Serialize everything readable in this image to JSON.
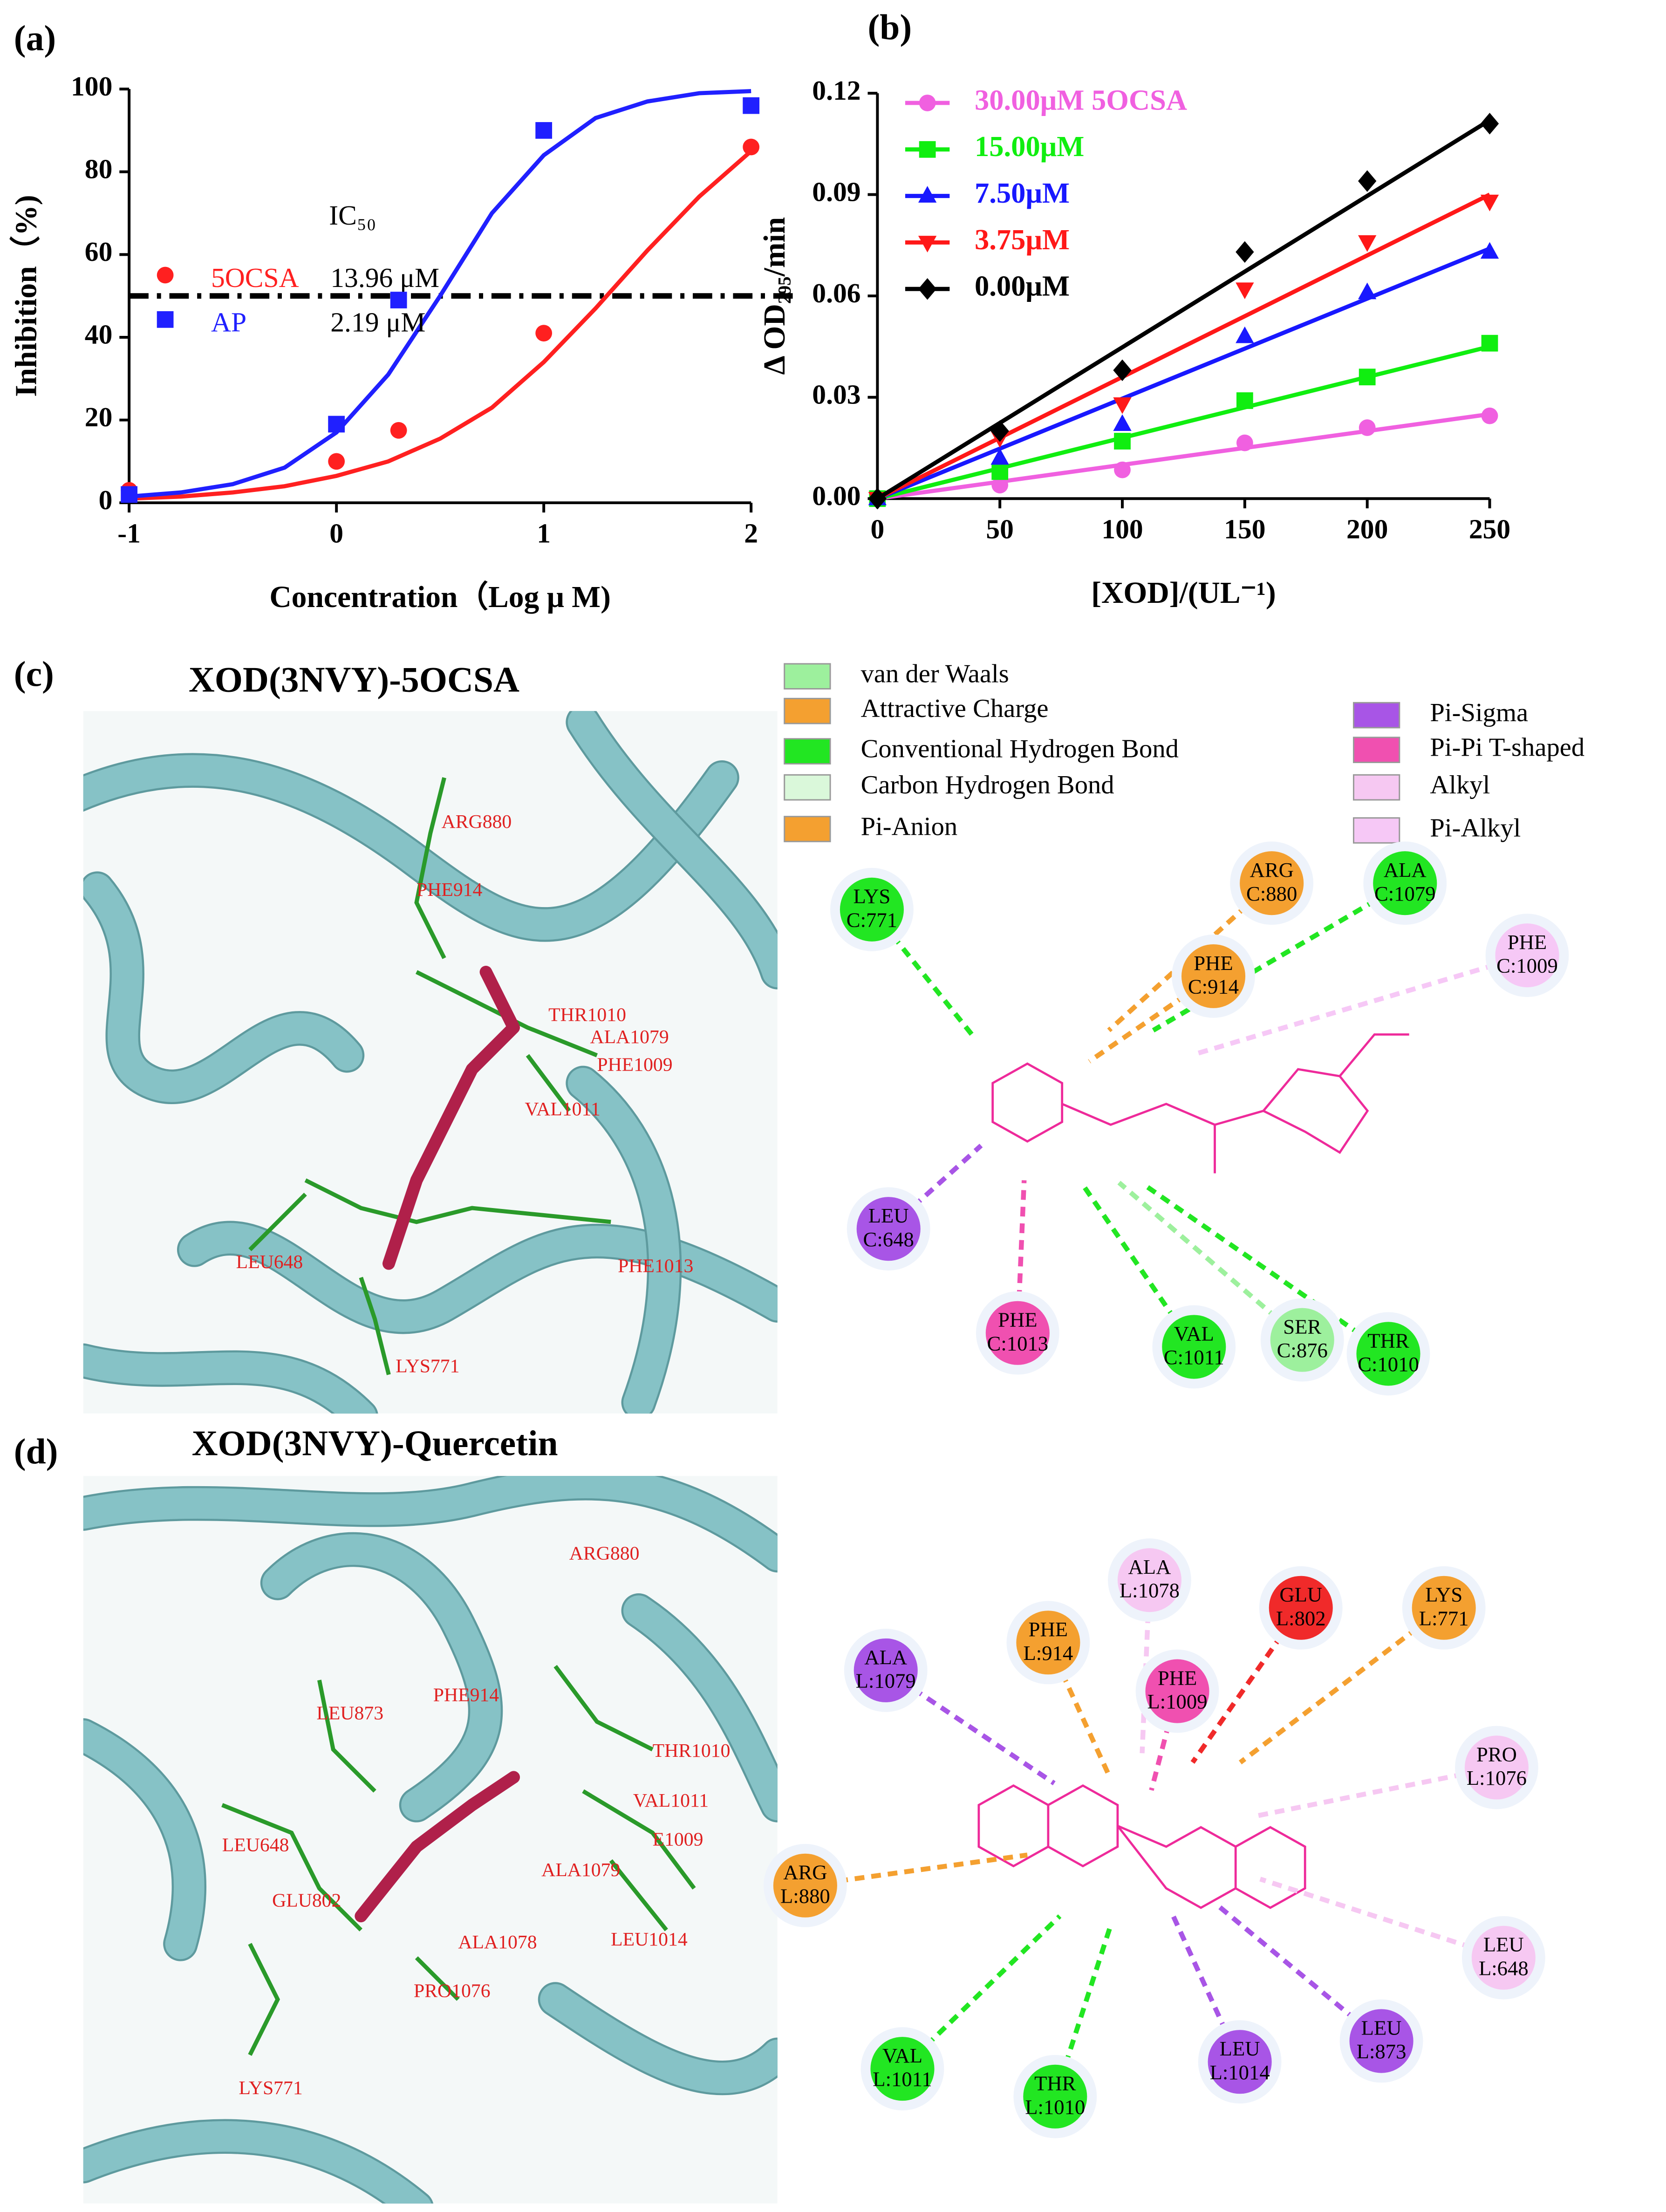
{
  "chart_data": [
    {
      "type": "scatter",
      "panel_label": "(a)",
      "x_label": "Concentration（Log μ M)",
      "y_label": "Inhibition（%)",
      "xlim": [
        -1,
        2
      ],
      "xticks": [
        -1,
        0,
        1,
        2
      ],
      "ylim": [
        0,
        100
      ],
      "yticks": [
        0,
        20,
        40,
        60,
        80,
        100
      ],
      "annotation": "IC₅₀",
      "reference_line": 50,
      "series": [
        {
          "name": "5OCSA",
          "ic50": "13.96 μM",
          "color": "#ff2020",
          "marker": "circle",
          "x": [
            -1,
            0,
            0.3,
            1,
            2
          ],
          "values": [
            3,
            10,
            17.5,
            41,
            86
          ],
          "fit": {
            "x": [
              -1,
              -0.75,
              -0.5,
              -0.25,
              0,
              0.25,
              0.5,
              0.75,
              1,
              1.25,
              1.5,
              1.75,
              2
            ],
            "values": [
              1,
              1.5,
              2.5,
              4,
              6.5,
              10,
              15.5,
              23,
              34,
              47,
              61,
              74,
              85
            ]
          }
        },
        {
          "name": "AP",
          "ic50": "2.19 μM",
          "color": "#2020ff",
          "marker": "square",
          "x": [
            -1,
            0,
            0.3,
            1,
            2
          ],
          "values": [
            2,
            19,
            49,
            90,
            96
          ],
          "fit": {
            "x": [
              -1,
              -0.75,
              -0.5,
              -0.25,
              0,
              0.25,
              0.5,
              0.75,
              1,
              1.25,
              1.5,
              1.75,
              2
            ],
            "values": [
              1.5,
              2.5,
              4.5,
              8.5,
              17,
              31,
              50,
              70,
              84,
              93,
              97,
              99,
              99.5
            ]
          }
        }
      ]
    },
    {
      "type": "scatter",
      "panel_label": "(b)",
      "x_label": "[XOD]/(UL⁻¹)",
      "y_label": "Δ OD₂₉₅/min",
      "xlim": [
        0,
        250
      ],
      "xticks": [
        0,
        50,
        100,
        150,
        200,
        250
      ],
      "ylim": [
        0,
        0.12
      ],
      "yticks": [
        {
          "value": 0,
          "label": "0.00"
        },
        {
          "value": 0.03,
          "label": "0.03"
        },
        {
          "value": 0.06,
          "label": "0.06"
        },
        {
          "value": 0.09,
          "label": "0.09"
        },
        {
          "value": 0.12,
          "label": "0.12"
        }
      ],
      "legend": "top-left",
      "series": [
        {
          "name": "30.00μM 5OCSA",
          "color": "#f060e0",
          "marker": "circle",
          "x": [
            0,
            50,
            100,
            150,
            200,
            250
          ],
          "values": [
            0,
            0.004,
            0.0085,
            0.0165,
            0.021,
            0.0245
          ],
          "fit": {
            "x": [
              0,
              250
            ],
            "values": [
              0,
              0.025
            ]
          }
        },
        {
          "name": "15.00μM",
          "color": "#10ee10",
          "marker": "square",
          "x": [
            0,
            50,
            100,
            150,
            200,
            250
          ],
          "values": [
            0,
            0.008,
            0.017,
            0.029,
            0.036,
            0.046
          ],
          "fit": {
            "x": [
              0,
              250
            ],
            "values": [
              0,
              0.045
            ]
          }
        },
        {
          "name": "7.50μM",
          "color": "#1818ff",
          "marker": "triangle",
          "x": [
            0,
            50,
            100,
            150,
            200,
            250
          ],
          "values": [
            0,
            0.012,
            0.022,
            0.048,
            0.061,
            0.073
          ],
          "fit": {
            "x": [
              0,
              250
            ],
            "values": [
              0,
              0.074
            ]
          }
        },
        {
          "name": "3.75μM",
          "color": "#ff1818",
          "marker": "triangle-down",
          "x": [
            0,
            50,
            100,
            150,
            200,
            250
          ],
          "values": [
            0,
            0.018,
            0.028,
            0.062,
            0.076,
            0.088
          ],
          "fit": {
            "x": [
              0,
              250
            ],
            "values": [
              0,
              0.09
            ]
          }
        },
        {
          "name": "0.00μM",
          "color": "#000000",
          "marker": "diamond",
          "x": [
            0,
            50,
            100,
            150,
            200,
            250
          ],
          "values": [
            0,
            0.02,
            0.038,
            0.073,
            0.094,
            0.111
          ],
          "fit": {
            "x": [
              0,
              250
            ],
            "values": [
              0,
              0.112
            ]
          }
        }
      ]
    }
  ],
  "interaction_legend": [
    {
      "name": "van der Waals",
      "color": "#9df09d"
    },
    {
      "name": "Attractive Charge",
      "color": "#f4a030"
    },
    {
      "name": "Conventional Hydrogen Bond",
      "color": "#22e622"
    },
    {
      "name": "Carbon Hydrogen Bond",
      "color": "#daf8da"
    },
    {
      "name": "Pi-Anion",
      "color": "#f4a030"
    },
    {
      "name": "Pi-Sigma",
      "color": "#a855e6"
    },
    {
      "name": "Pi-Pi T-shaped",
      "color": "#f050b0"
    },
    {
      "name": "Alkyl",
      "color": "#f6c8f2"
    },
    {
      "name": "Pi-Alkyl",
      "color": "#f6c8f6"
    }
  ],
  "panel_c": {
    "panel_label": "(c)",
    "title": "XOD(3NVY)-5OCSA",
    "render_labels": [
      "ARG880",
      "PHE914",
      "THR1010",
      "ALA1079",
      "PHE1009",
      "VAL1011",
      "PHE1013",
      "LEU648",
      "LYS771"
    ],
    "residues": [
      {
        "name": "LYS",
        "id": "C:771",
        "color": "#22e622"
      },
      {
        "name": "ARG",
        "id": "C:880",
        "color": "#f4a030"
      },
      {
        "name": "ALA",
        "id": "C:1079",
        "color": "#22e622"
      },
      {
        "name": "PHE",
        "id": "C:1009",
        "color": "#f6c8f6"
      },
      {
        "name": "PHE",
        "id": "C:914",
        "color": "#f4a030"
      },
      {
        "name": "LEU",
        "id": "C:648",
        "color": "#a855e6"
      },
      {
        "name": "PHE",
        "id": "C:1013",
        "color": "#f050b0"
      },
      {
        "name": "VAL",
        "id": "C:1011",
        "color": "#22e622"
      },
      {
        "name": "SER",
        "id": "C:876",
        "color": "#9df09d"
      },
      {
        "name": "THR",
        "id": "C:1010",
        "color": "#22e622"
      }
    ]
  },
  "panel_d": {
    "panel_label": "(d)",
    "title": "XOD(3NVY)-Quercetin",
    "render_labels": [
      "ARG880",
      "LEU873",
      "PHE914",
      "THR1010",
      "VAL1011",
      "E1009",
      "ALA1079",
      "LEU648",
      "GLU802",
      "ALA1078",
      "LEU1014",
      "PRO1076",
      "LYS771"
    ],
    "residues": [
      {
        "name": "ALA",
        "id": "L:1078",
        "color": "#f6c8f2"
      },
      {
        "name": "GLU",
        "id": "L:802",
        "color": "#f02a2a"
      },
      {
        "name": "LYS",
        "id": "L:771",
        "color": "#f4a030"
      },
      {
        "name": "PHE",
        "id": "L:914",
        "color": "#f4a030"
      },
      {
        "name": "ALA",
        "id": "L:1079",
        "color": "#a855e6"
      },
      {
        "name": "PHE",
        "id": "L:1009",
        "color": "#f050b0"
      },
      {
        "name": "PRO",
        "id": "L:1076",
        "color": "#f6c8f2"
      },
      {
        "name": "ARG",
        "id": "L:880",
        "color": "#f4a030"
      },
      {
        "name": "LEU",
        "id": "L:648",
        "color": "#f6c8f2"
      },
      {
        "name": "VAL",
        "id": "L:1011",
        "color": "#22e622"
      },
      {
        "name": "THR",
        "id": "L:1010",
        "color": "#22e622"
      },
      {
        "name": "LEU",
        "id": "L:1014",
        "color": "#a855e6"
      },
      {
        "name": "LEU",
        "id": "L:873",
        "color": "#a855e6"
      }
    ]
  }
}
